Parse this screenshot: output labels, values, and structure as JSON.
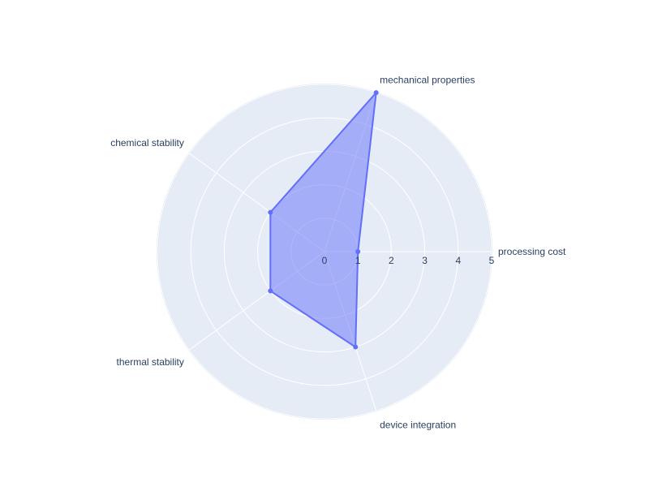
{
  "chart_data": {
    "type": "radar",
    "title": "",
    "axes": [
      "processing cost",
      "mechanical properties",
      "chemical stability",
      "thermal stability",
      "device integration"
    ],
    "series": [
      {
        "values": [
          1,
          5,
          2,
          2,
          3
        ]
      }
    ],
    "radial_range": [
      0,
      5
    ],
    "radial_ticks": [
      "0",
      "1",
      "2",
      "3",
      "4",
      "5"
    ],
    "grid": true,
    "legend": "none",
    "colors": {
      "series_line": "#636efa",
      "series_fill": "rgba(99,110,250,0.5)",
      "plot_background": "#e5ecf6",
      "grid": "#ffffff",
      "text": "#2a3f5f"
    }
  }
}
